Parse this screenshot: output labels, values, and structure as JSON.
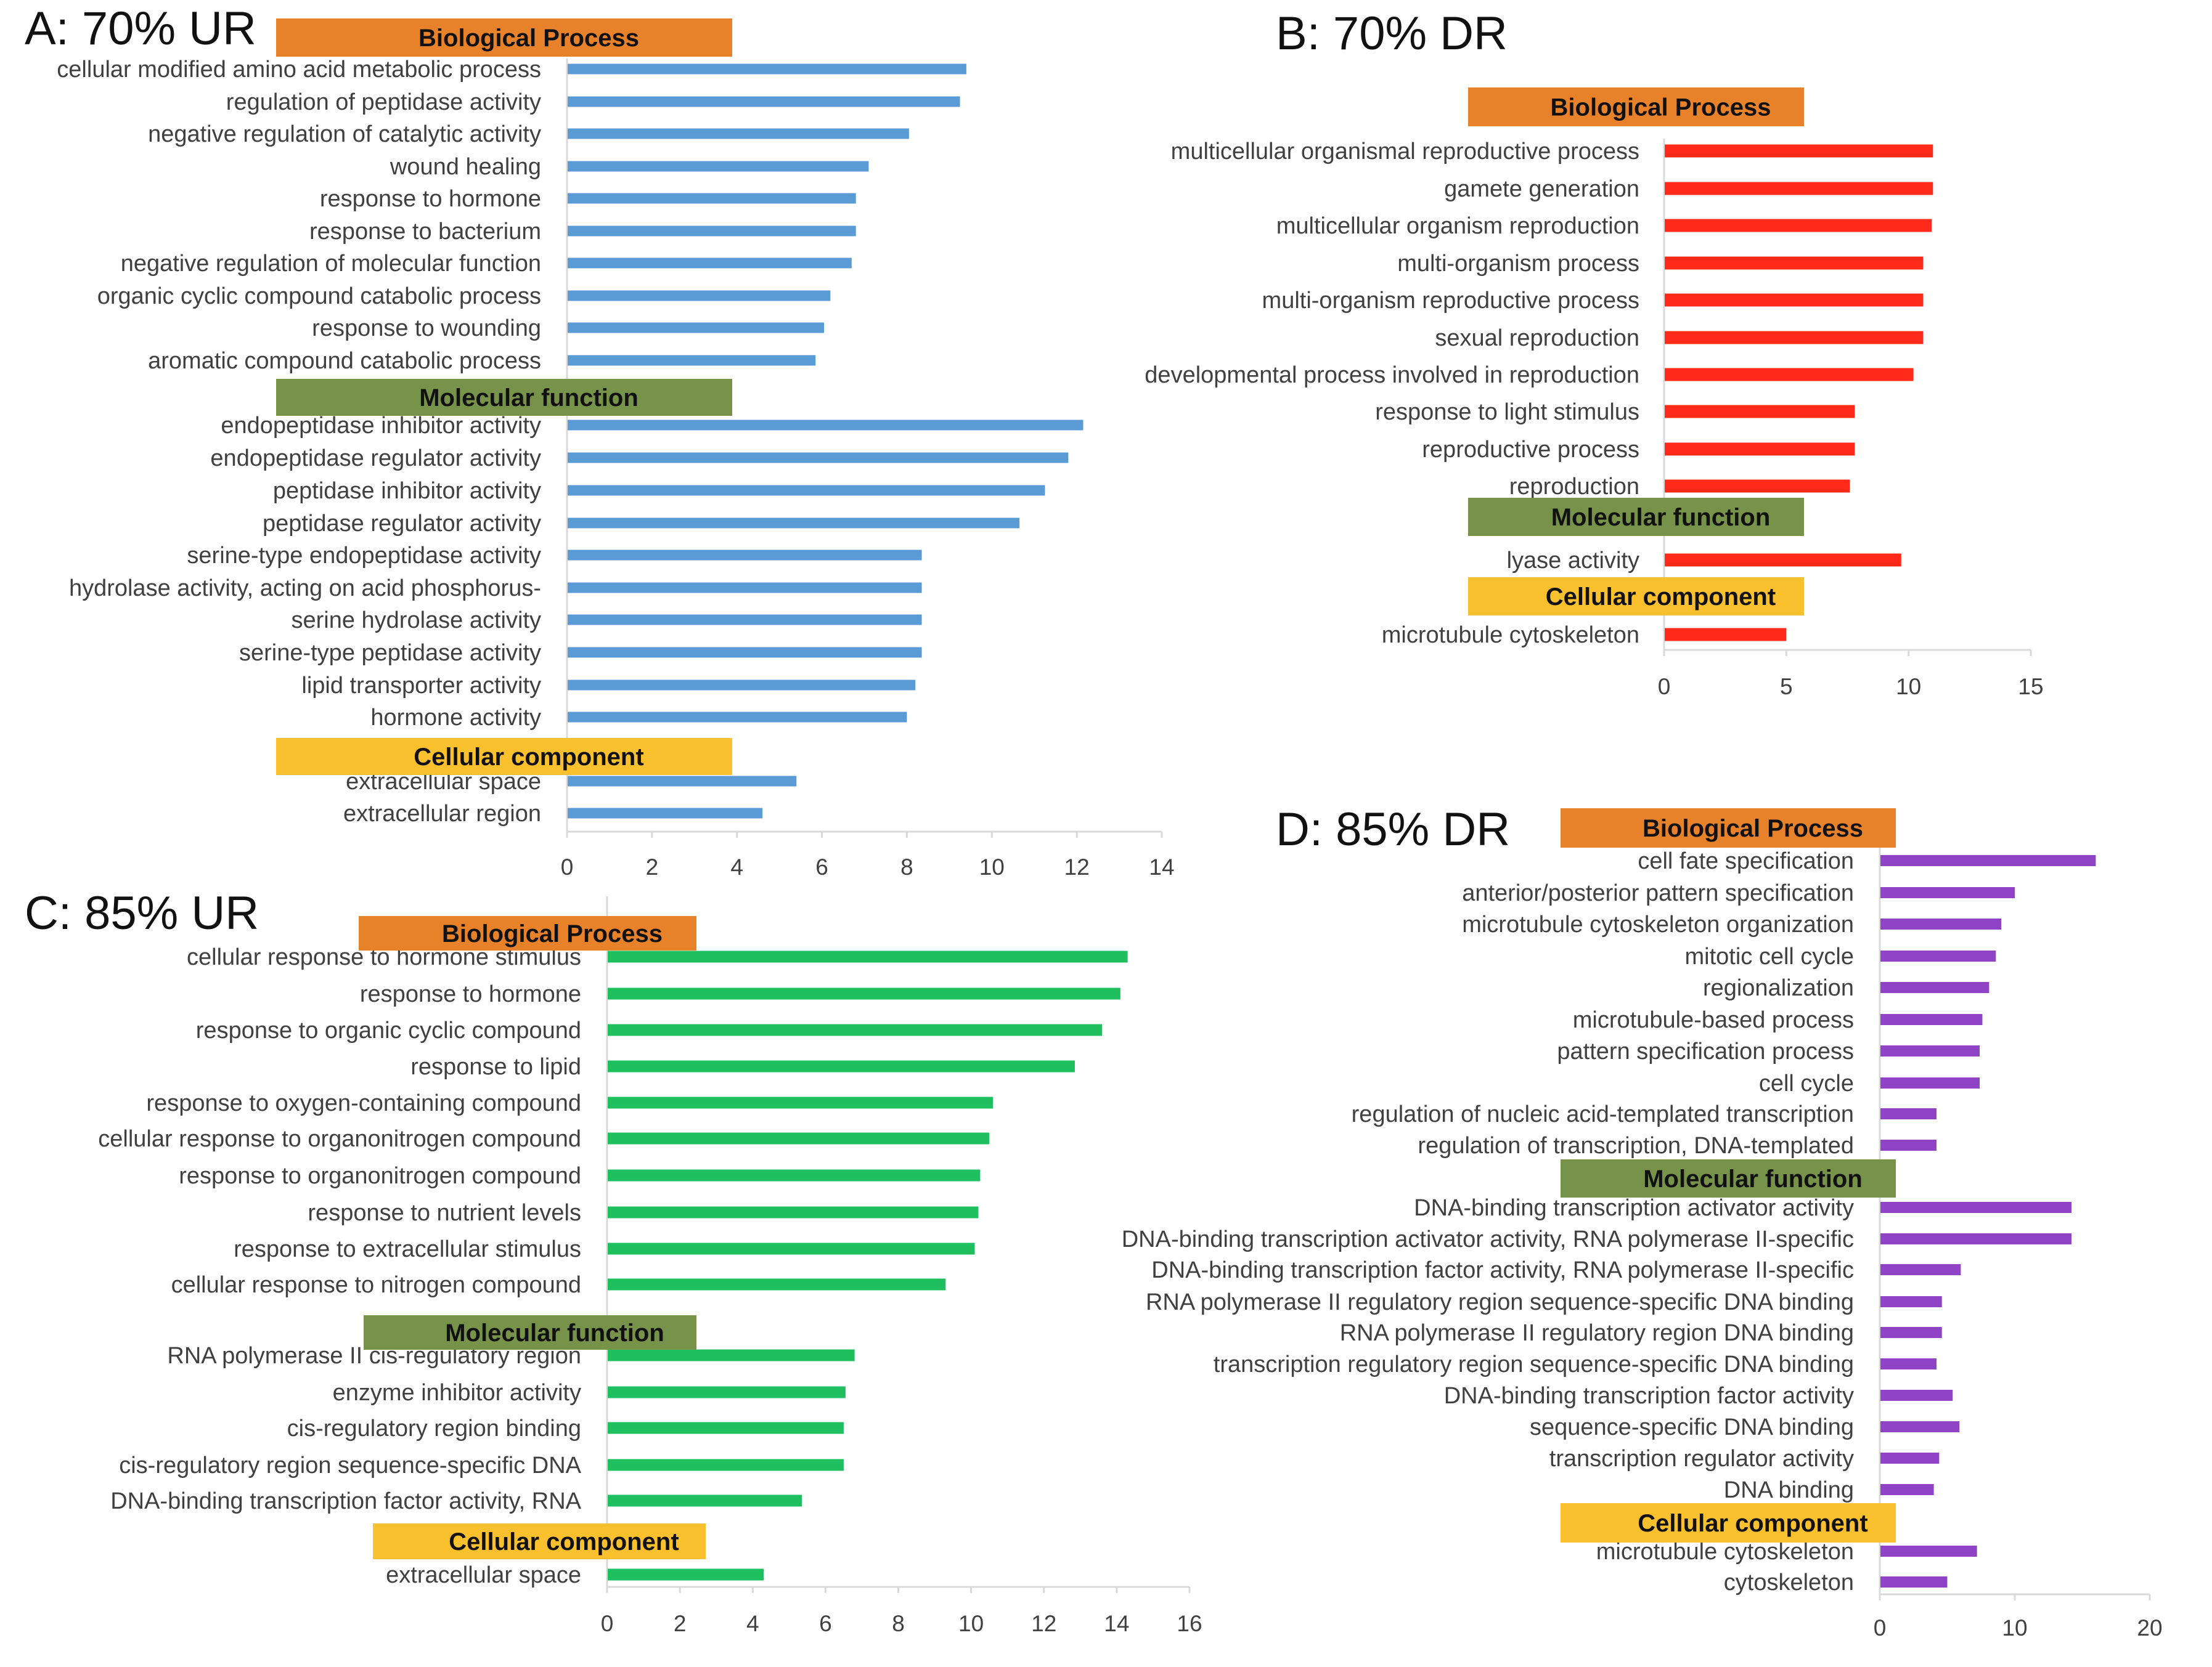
{
  "colors": {
    "panelA": "#5b9bd5",
    "panelB": "#ff2a1a",
    "panelC": "#1fbf5f",
    "panelD": "#8e44c4",
    "biological_process": "#e8822a",
    "molecular_function": "#77934a",
    "cellular_component": "#fbc02d",
    "axis": "#d9d9d9"
  },
  "chart_data": [
    {
      "id": "A",
      "type": "bar",
      "orientation": "horizontal",
      "title": "A: 70% UR",
      "xlim": [
        0,
        14
      ],
      "xticks": [
        0,
        2,
        4,
        6,
        8,
        10,
        12,
        14
      ],
      "color": "#5b9bd5",
      "sections": [
        {
          "name": "Biological Process",
          "color": "#e8822a",
          "categories": [
            "cellular modified amino acid metabolic process",
            "regulation of peptidase activity",
            "negative regulation of catalytic activity",
            "wound healing",
            "response to hormone",
            "response to bacterium",
            "negative regulation of molecular function",
            "organic cyclic compound catabolic process",
            "response to wounding",
            "aromatic compound catabolic process"
          ],
          "values": [
            9.4,
            9.25,
            8.05,
            7.1,
            6.8,
            6.8,
            6.7,
            6.2,
            6.05,
            5.85
          ]
        },
        {
          "name": "Molecular function",
          "color": "#77934a",
          "categories": [
            "endopeptidase inhibitor activity",
            "endopeptidase regulator activity",
            "peptidase inhibitor activity",
            "peptidase regulator activity",
            "serine-type endopeptidase activity",
            "hydrolase activity, acting on acid phosphorus-",
            "serine hydrolase activity",
            "serine-type peptidase activity",
            "lipid transporter activity",
            "hormone activity"
          ],
          "values": [
            12.15,
            11.8,
            11.25,
            10.65,
            8.35,
            8.35,
            8.35,
            8.35,
            8.2,
            8.0
          ]
        },
        {
          "name": "Cellular component",
          "color": "#fbc02d",
          "categories": [
            "extracellular space",
            "extracellular region"
          ],
          "values": [
            5.4,
            4.6
          ]
        }
      ]
    },
    {
      "id": "B",
      "type": "bar",
      "orientation": "horizontal",
      "title": "B: 70% DR",
      "xlim": [
        0,
        15
      ],
      "xticks": [
        0,
        5,
        10,
        15
      ],
      "color": "#ff2a1a",
      "sections": [
        {
          "name": "Biological Process",
          "color": "#e8822a",
          "categories": [
            "multicellular organismal reproductive process",
            "gamete generation",
            "multicellular organism reproduction",
            "multi-organism process",
            "multi-organism reproductive process",
            "sexual reproduction",
            "developmental process involved in reproduction",
            "response to light stimulus",
            "reproductive process",
            "reproduction"
          ],
          "values": [
            11.0,
            11.0,
            10.95,
            10.6,
            10.6,
            10.6,
            10.2,
            7.8,
            7.8,
            7.6
          ]
        },
        {
          "name": "Molecular function",
          "color": "#77934a",
          "categories": [
            "lyase activity"
          ],
          "values": [
            9.7
          ]
        },
        {
          "name": "Cellular component",
          "color": "#fbc02d",
          "categories": [
            "microtubule cytoskeleton"
          ],
          "values": [
            5.0
          ]
        }
      ]
    },
    {
      "id": "C",
      "type": "bar",
      "orientation": "horizontal",
      "title": "C: 85% UR",
      "xlim": [
        0,
        16
      ],
      "xticks": [
        0,
        2,
        4,
        6,
        8,
        10,
        12,
        14,
        16
      ],
      "color": "#1fbf5f",
      "sections": [
        {
          "name": "Biological Process",
          "color": "#e8822a",
          "categories": [
            "cellular response to hormone stimulus",
            "response to hormone",
            "response to organic cyclic compound",
            "response to lipid",
            "response to oxygen-containing compound",
            "cellular response to organonitrogen compound",
            "response to organonitrogen compound",
            "response to nutrient levels",
            "response to extracellular stimulus",
            "cellular response to nitrogen compound"
          ],
          "values": [
            14.3,
            14.1,
            13.6,
            12.85,
            10.6,
            10.5,
            10.25,
            10.2,
            10.1,
            9.3
          ]
        },
        {
          "name": "Molecular function",
          "color": "#77934a",
          "categories": [
            "RNA polymerase II cis-regulatory region",
            "enzyme inhibitor activity",
            "cis-regulatory region binding",
            "cis-regulatory region sequence-specific DNA",
            "DNA-binding transcription factor activity, RNA"
          ],
          "values": [
            6.8,
            6.55,
            6.5,
            6.5,
            5.35
          ]
        },
        {
          "name": "Cellular component",
          "color": "#fbc02d",
          "categories": [
            "extracellular space"
          ],
          "values": [
            4.3
          ]
        }
      ]
    },
    {
      "id": "D",
      "type": "bar",
      "orientation": "horizontal",
      "title": "D: 85% DR",
      "xlim": [
        0,
        20
      ],
      "xticks": [
        0,
        10,
        20
      ],
      "color": "#8e44c4",
      "sections": [
        {
          "name": "Biological Process",
          "color": "#e8822a",
          "categories": [
            "cell fate specification",
            "anterior/posterior pattern specification",
            "microtubule cytoskeleton organization",
            "mitotic cell cycle",
            "regionalization",
            "microtubule-based process",
            "pattern specification process",
            "cell cycle",
            "regulation of nucleic acid-templated transcription",
            "regulation of transcription, DNA-templated"
          ],
          "values": [
            16.0,
            10.0,
            9.0,
            8.6,
            8.1,
            7.6,
            7.4,
            7.4,
            4.2,
            4.2
          ]
        },
        {
          "name": "Molecular function",
          "color": "#77934a",
          "categories": [
            "DNA-binding transcription activator activity",
            "DNA-binding transcription activator activity, RNA polymerase II-specific",
            "DNA-binding transcription factor activity, RNA polymerase II-specific",
            "RNA polymerase II regulatory region sequence-specific DNA binding",
            "RNA polymerase II regulatory region DNA binding",
            "transcription regulatory region sequence-specific DNA binding",
            "DNA-binding transcription factor activity",
            "sequence-specific DNA binding",
            "transcription regulator activity",
            "DNA binding"
          ],
          "values": [
            14.2,
            14.2,
            6.0,
            4.6,
            4.6,
            4.2,
            5.4,
            5.9,
            4.4,
            4.0
          ]
        },
        {
          "name": "Cellular component",
          "color": "#fbc02d",
          "categories": [
            "microtubule cytoskeleton",
            "cytoskeleton"
          ],
          "values": [
            7.2,
            5.0
          ]
        }
      ]
    }
  ]
}
